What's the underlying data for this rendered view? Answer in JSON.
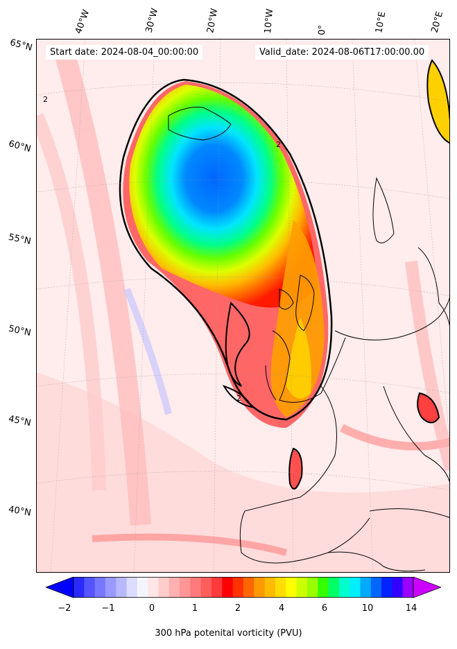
{
  "header": {
    "start_date": "Start date: 2024-08-04_00:00:00",
    "valid_date": "Valid_date: 2024-08-06T17:00:00.00"
  },
  "map": {
    "longitude_labels": [
      "40°W",
      "30°W",
      "20°W",
      "10°W",
      "0°",
      "10°E",
      "20°E"
    ],
    "latitude_labels": [
      "65°N",
      "60°N",
      "55°N",
      "50°N",
      "45°N",
      "40°N"
    ],
    "contour_label": "2"
  },
  "colorbar": {
    "label": "300 hPa potenital vorticity (PVU)",
    "ticks": [
      "−2",
      "−1",
      "0",
      "1",
      "2",
      "4",
      "6",
      "10",
      "14"
    ],
    "colors": [
      "#0000ff",
      "#2a2aff",
      "#5555ff",
      "#7777ff",
      "#9999ff",
      "#b8b8ff",
      "#dcdcff",
      "#f4f4ff",
      "#ffe6e6",
      "#ffcccc",
      "#ffb0b0",
      "#ff9595",
      "#ff7a7a",
      "#ff5c5c",
      "#ff3a3a",
      "#ff0000",
      "#ff3300",
      "#ff6600",
      "#ff9900",
      "#ffbb00",
      "#ffdd00",
      "#ffff00",
      "#ccff00",
      "#99ff00",
      "#33ff00",
      "#00ff66",
      "#00ffcc",
      "#00eeff",
      "#00aaff",
      "#0066ff",
      "#0022ff",
      "#3300ff",
      "#9900ff",
      "#cc00ff"
    ]
  }
}
